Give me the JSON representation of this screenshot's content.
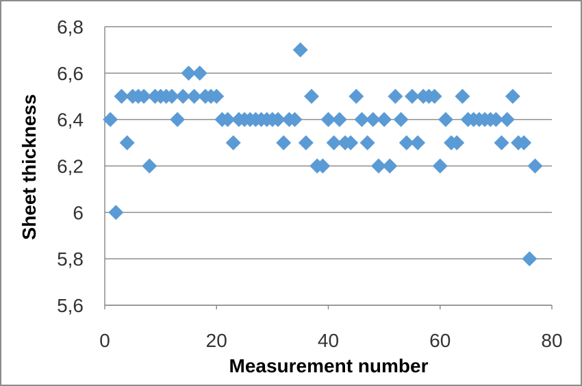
{
  "chart_data": {
    "type": "scatter",
    "title": "",
    "xlabel": "Measurement number",
    "ylabel": "Sheet thickness",
    "xlim": [
      0,
      80
    ],
    "ylim": [
      5.6,
      6.8
    ],
    "x_ticks": [
      "0",
      "20",
      "40",
      "60",
      "80"
    ],
    "y_ticks": [
      "5,6",
      "5,8",
      "6",
      "6,2",
      "6,4",
      "6,6",
      "6,8"
    ],
    "grid": "horizontal",
    "legend": "none",
    "marker": "diamond",
    "marker_color": "#5b9bd5",
    "series": [
      {
        "points": [
          [
            1,
            6.4
          ],
          [
            2,
            6.0
          ],
          [
            3,
            6.5
          ],
          [
            4,
            6.3
          ],
          [
            5,
            6.5
          ],
          [
            6,
            6.5
          ],
          [
            7,
            6.5
          ],
          [
            8,
            6.2
          ],
          [
            9,
            6.5
          ],
          [
            10,
            6.5
          ],
          [
            11,
            6.5
          ],
          [
            12,
            6.5
          ],
          [
            13,
            6.4
          ],
          [
            14,
            6.5
          ],
          [
            15,
            6.6
          ],
          [
            16,
            6.5
          ],
          [
            17,
            6.6
          ],
          [
            18,
            6.5
          ],
          [
            19,
            6.5
          ],
          [
            20,
            6.5
          ],
          [
            21,
            6.4
          ],
          [
            22,
            6.4
          ],
          [
            23,
            6.3
          ],
          [
            24,
            6.4
          ],
          [
            25,
            6.4
          ],
          [
            26,
            6.4
          ],
          [
            27,
            6.4
          ],
          [
            28,
            6.4
          ],
          [
            29,
            6.4
          ],
          [
            30,
            6.4
          ],
          [
            31,
            6.4
          ],
          [
            32,
            6.3
          ],
          [
            33,
            6.4
          ],
          [
            34,
            6.4
          ],
          [
            35,
            6.7
          ],
          [
            36,
            6.3
          ],
          [
            37,
            6.5
          ],
          [
            38,
            6.2
          ],
          [
            39,
            6.2
          ],
          [
            40,
            6.4
          ],
          [
            41,
            6.3
          ],
          [
            42,
            6.4
          ],
          [
            43,
            6.3
          ],
          [
            44,
            6.3
          ],
          [
            45,
            6.5
          ],
          [
            46,
            6.4
          ],
          [
            47,
            6.3
          ],
          [
            48,
            6.4
          ],
          [
            49,
            6.2
          ],
          [
            50,
            6.4
          ],
          [
            51,
            6.2
          ],
          [
            52,
            6.5
          ],
          [
            53,
            6.4
          ],
          [
            54,
            6.3
          ],
          [
            55,
            6.5
          ],
          [
            56,
            6.3
          ],
          [
            57,
            6.5
          ],
          [
            58,
            6.5
          ],
          [
            59,
            6.5
          ],
          [
            60,
            6.2
          ],
          [
            61,
            6.4
          ],
          [
            62,
            6.3
          ],
          [
            63,
            6.3
          ],
          [
            64,
            6.5
          ],
          [
            65,
            6.4
          ],
          [
            66,
            6.4
          ],
          [
            67,
            6.4
          ],
          [
            68,
            6.4
          ],
          [
            69,
            6.4
          ],
          [
            70,
            6.4
          ],
          [
            71,
            6.3
          ],
          [
            72,
            6.4
          ],
          [
            73,
            6.5
          ],
          [
            74,
            6.3
          ],
          [
            75,
            6.3
          ],
          [
            76,
            5.8
          ],
          [
            77,
            6.2
          ]
        ]
      }
    ]
  }
}
